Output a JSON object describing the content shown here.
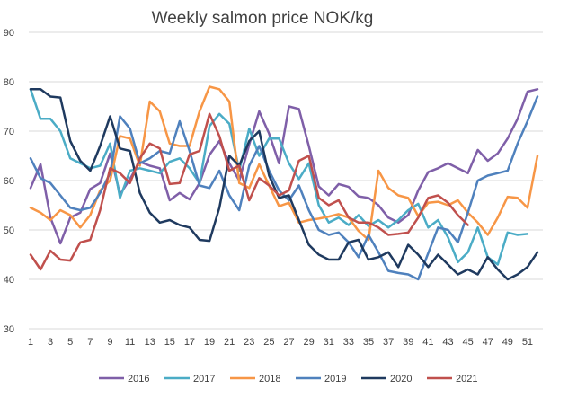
{
  "chart_data": {
    "type": "line",
    "title": "Weekly salmon price NOK/kg",
    "xlabel": "",
    "ylabel": "",
    "ylim": [
      30,
      90
    ],
    "yticks": [
      30,
      40,
      50,
      60,
      70,
      80,
      90
    ],
    "x": [
      1,
      2,
      3,
      4,
      5,
      6,
      7,
      8,
      9,
      10,
      11,
      12,
      13,
      14,
      15,
      16,
      17,
      18,
      19,
      20,
      21,
      22,
      23,
      24,
      25,
      26,
      27,
      28,
      29,
      30,
      31,
      32,
      33,
      34,
      35,
      36,
      37,
      38,
      39,
      40,
      41,
      42,
      43,
      44,
      45,
      46,
      47,
      48,
      49,
      50,
      51,
      52
    ],
    "xticks": [
      1,
      3,
      5,
      7,
      9,
      11,
      13,
      15,
      17,
      19,
      21,
      23,
      25,
      27,
      29,
      31,
      33,
      35,
      37,
      39,
      41,
      43,
      45,
      47,
      49,
      51
    ],
    "grid": true,
    "legend": "bottom",
    "series": [
      {
        "name": "2016",
        "color": "#7f5fa8",
        "values": [
          58.5,
          63.3,
          52.5,
          47.3,
          52.5,
          53.5,
          58.3,
          59.5,
          65.5,
          57.2,
          60.3,
          63.8,
          63.0,
          62.5,
          56.0,
          57.5,
          56.2,
          59.5,
          65.2,
          68.0,
          63.5,
          60.0,
          67.3,
          74.0,
          69.5,
          63.5,
          75.0,
          74.5,
          67.0,
          58.8,
          57.0,
          59.3,
          58.7,
          56.8,
          56.5,
          55.0,
          52.5,
          51.5,
          53.0,
          58.0,
          61.7,
          62.5,
          63.5,
          62.5,
          61.5,
          66.2,
          64.0,
          65.5,
          68.5,
          72.5,
          78.0,
          78.5
        ]
      },
      {
        "name": "2017",
        "color": "#4bacc6",
        "values": [
          78.5,
          72.5,
          72.5,
          70.0,
          64.5,
          63.5,
          62.5,
          63.0,
          67.5,
          56.5,
          62.0,
          62.5,
          62.0,
          61.5,
          63.8,
          64.5,
          62.5,
          59.5,
          71.0,
          73.5,
          71.5,
          62.0,
          70.5,
          65.0,
          68.5,
          68.5,
          63.5,
          60.3,
          63.5,
          55.0,
          51.5,
          52.5,
          51.0,
          53.0,
          50.8,
          52.0,
          50.5,
          52.0,
          54.0,
          55.3,
          50.5,
          52.0,
          48.5,
          43.5,
          45.5,
          50.5,
          44.5,
          43.0,
          49.5,
          49.0,
          49.2,
          null
        ]
      },
      {
        "name": "2018",
        "color": "#f79646",
        "values": [
          54.5,
          53.5,
          52.0,
          54.0,
          53.0,
          50.5,
          53.0,
          58.0,
          60.0,
          69.0,
          68.5,
          63.0,
          76.0,
          74.0,
          67.5,
          67.0,
          67.0,
          74.0,
          79.0,
          78.5,
          76.0,
          59.5,
          58.5,
          63.3,
          59.0,
          54.8,
          55.5,
          51.5,
          52.0,
          52.3,
          52.7,
          53.2,
          52.5,
          49.8,
          48.0,
          62.0,
          58.5,
          57.0,
          56.5,
          52.8,
          55.5,
          55.7,
          55.0,
          56.0,
          53.5,
          51.5,
          49.0,
          52.5,
          56.7,
          56.5,
          54.5,
          65.0
        ]
      },
      {
        "name": "2019",
        "color": "#4f81bd",
        "values": [
          64.5,
          60.5,
          59.5,
          57.0,
          54.5,
          54.0,
          54.5,
          57.5,
          61.5,
          73.0,
          70.5,
          63.5,
          64.5,
          66.0,
          65.5,
          72.0,
          66.0,
          59.0,
          58.5,
          62.0,
          57.0,
          54.0,
          63.0,
          67.0,
          62.0,
          58.0,
          56.0,
          59.0,
          54.0,
          50.0,
          49.0,
          49.5,
          47.5,
          44.5,
          49.0,
          45.5,
          41.7,
          41.3,
          41.0,
          40.0,
          45.3,
          50.5,
          50.0,
          47.5,
          53.5,
          60.0,
          61.0,
          61.5,
          62.0,
          67.5,
          72.0,
          77.0
        ]
      },
      {
        "name": "2020",
        "color": "#1f3a5f",
        "values": [
          78.5,
          78.5,
          77.0,
          76.8,
          68.0,
          64.0,
          62.0,
          67.0,
          73.0,
          66.5,
          66.0,
          57.5,
          53.5,
          51.5,
          52.0,
          51.0,
          50.5,
          48.0,
          47.8,
          54.5,
          65.0,
          63.0,
          68.0,
          70.0,
          61.0,
          56.5,
          57.0,
          52.0,
          47.0,
          45.0,
          44.0,
          44.0,
          47.5,
          48.0,
          44.0,
          44.5,
          45.5,
          42.5,
          47.0,
          45.0,
          42.5,
          45.0,
          43.0,
          41.0,
          42.0,
          41.0,
          44.5,
          42.0,
          40.0,
          41.0,
          42.5,
          45.5
        ]
      },
      {
        "name": "2021",
        "color": "#c0504d",
        "values": [
          45.0,
          42.0,
          45.8,
          44.0,
          43.8,
          47.5,
          48.0,
          54.0,
          62.5,
          61.5,
          59.5,
          64.5,
          67.5,
          66.5,
          59.3,
          59.5,
          65.3,
          66.0,
          73.5,
          69.0,
          62.0,
          63.0,
          56.0,
          60.5,
          59.0,
          57.0,
          58.0,
          64.0,
          65.0,
          56.5,
          55.0,
          56.0,
          52.5,
          51.5,
          51.5,
          50.5,
          49.0,
          49.2,
          49.5,
          52.5,
          56.5,
          57.0,
          55.5,
          53.0,
          51.0,
          null,
          null,
          null,
          null,
          null,
          null,
          null
        ]
      }
    ]
  }
}
